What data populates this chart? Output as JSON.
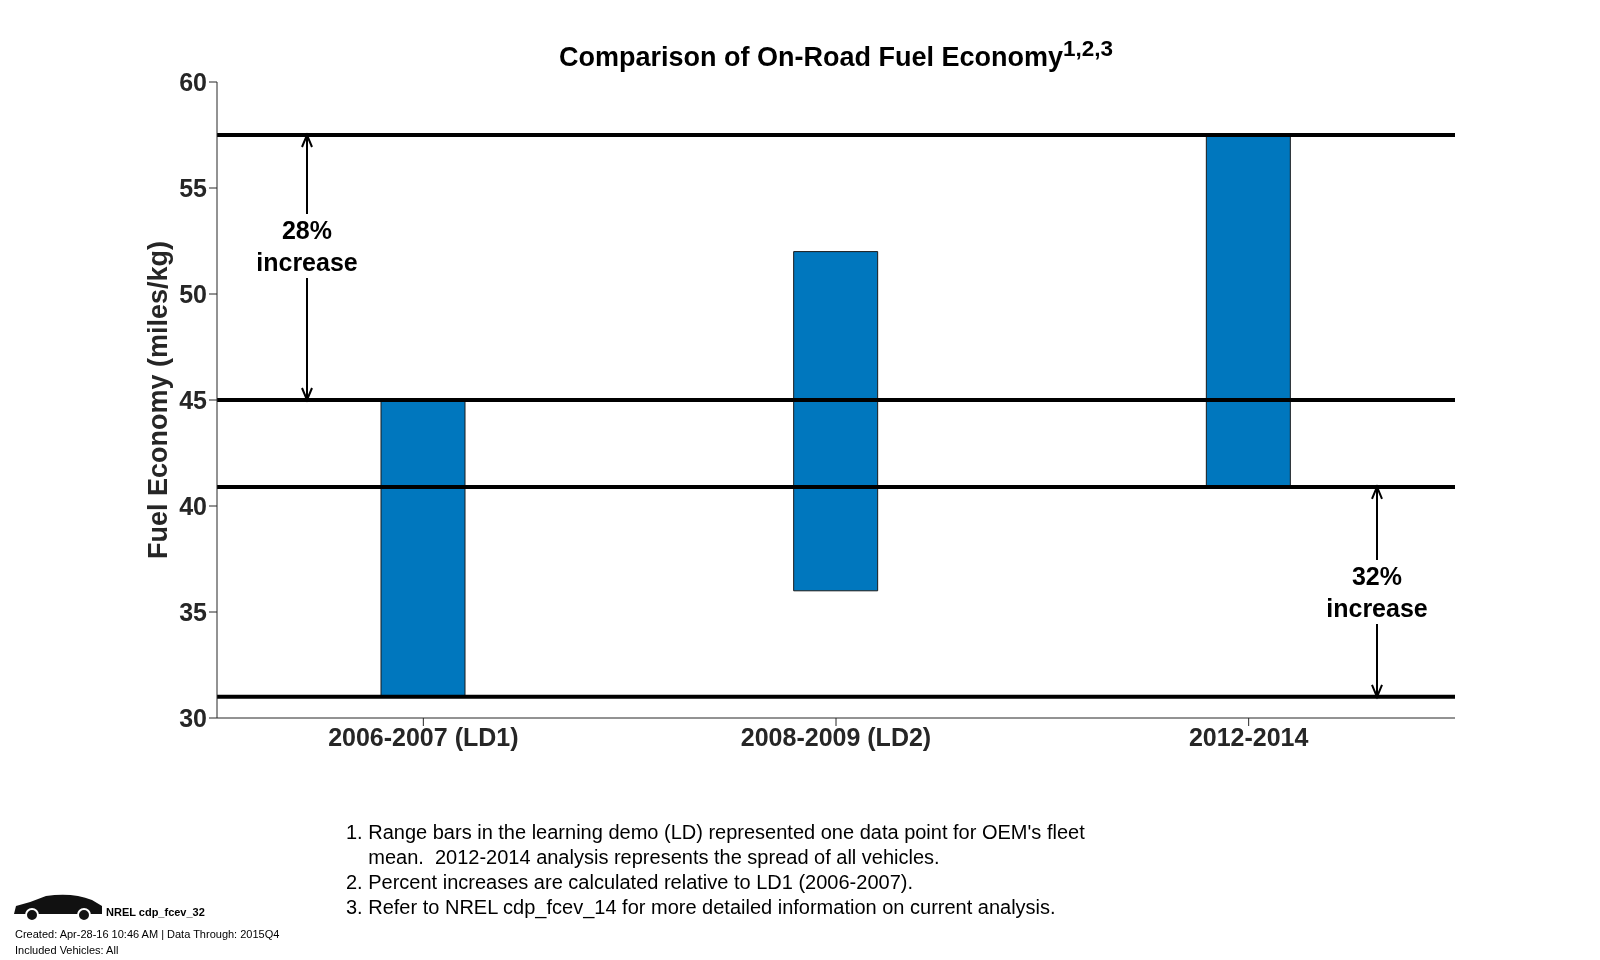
{
  "chart_data": {
    "type": "bar",
    "title": "Comparison of On-Road Fuel Economy$^{1,2,3}$",
    "ylabel": "Fuel Economy (miles/kg)",
    "categories": [
      "2006-2007 (LD1)",
      "2008-2009 (LD2)",
      "2012-2014"
    ],
    "values": [
      14,
      16,
      16.6
    ],
    "base": [
      31,
      36,
      40.9
    ],
    "color": "#0077be",
    "ylim": [
      30,
      60
    ],
    "yticks": [
      30,
      35,
      40,
      45,
      50,
      55,
      60
    ],
    "grid": false,
    "legend": false,
    "ref_lines": [
      {
        "axis": "y",
        "value": 57.5,
        "color": "#000000"
      },
      {
        "axis": "y",
        "value": 45,
        "color": "#000000"
      },
      {
        "axis": "y",
        "value": 31,
        "color": "#000000"
      },
      {
        "axis": "y",
        "value": 40.9,
        "color": "#000000"
      }
    ],
    "annotations": [
      "28%\nincrease",
      "32%\nincrease",
      "1. Range bars in the learning demo (LD) represented one data point for OEM's fleet\n    mean.  2012-2014 analysis represents the spread of all vehicles.\n2. Percent increases are calculated relative to LD1 (2006-2007).\n3. Refer to NREL cdp_fcev_14 for more detailed information on current analysis.",
      "NREL cdp_fcev_32",
      "Created: Apr-28-16 10:46 AM | Data Through: 2015Q4\nIncluded Vehicles: All"
    ]
  }
}
